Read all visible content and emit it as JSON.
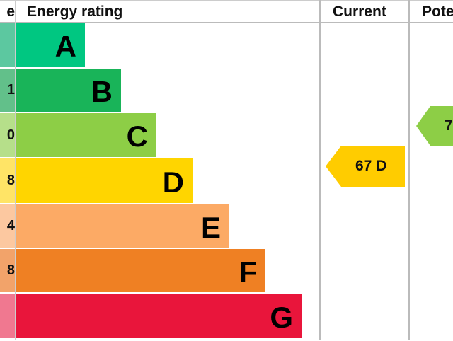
{
  "header": {
    "score_fragment": "e",
    "energy_rating": "Energy rating",
    "current": "Current",
    "potential_fragment": "Pote"
  },
  "chart_data": {
    "type": "bar",
    "title": "",
    "categories": [
      "A",
      "B",
      "C",
      "D",
      "E",
      "F",
      "G"
    ],
    "score_fragments": [
      "",
      "1",
      "0",
      "8",
      "4",
      "8",
      ""
    ],
    "colors": [
      "#00c781",
      "#19b459",
      "#8dce46",
      "#ffd500",
      "#fcaa65",
      "#ef8023",
      "#e9153b"
    ],
    "score_colors": [
      "#5cc8a0",
      "#62c08a",
      "#b6df8a",
      "#ffe466",
      "#fcc8a0",
      "#f2a36a",
      "#f07890"
    ],
    "current": {
      "value": 67,
      "band": "D",
      "label": "67 D",
      "color": "#ffcc00"
    },
    "potential": {
      "label_fragment": "7",
      "band": "C",
      "color": "#8dce46"
    }
  }
}
